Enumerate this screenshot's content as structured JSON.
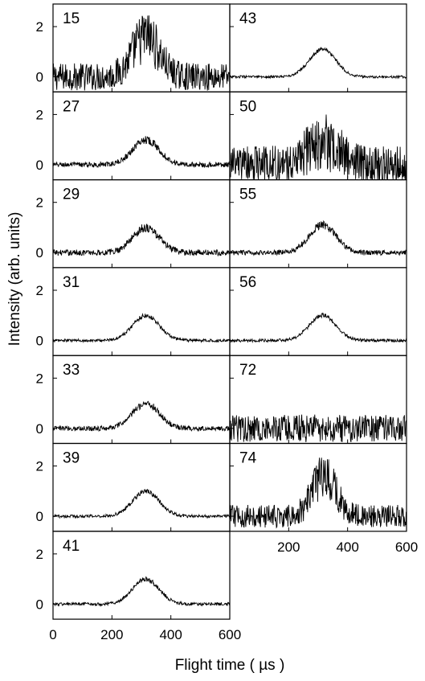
{
  "chart_data": {
    "type": "line",
    "xlabel": "Flight time ( µs )",
    "ylabel": "Intensity (arb. units)",
    "xlim": [
      0,
      600
    ],
    "ylim": [
      -0.6,
      2.9
    ],
    "x_ticks": [
      0,
      200,
      400,
      600
    ],
    "x_tick_labels": [
      "0",
      "200",
      "400",
      "600"
    ],
    "y_ticks": [
      0,
      2
    ],
    "y_tick_labels": [
      "0",
      "2"
    ],
    "grid": false,
    "panels": [
      {
        "label": "15",
        "column": "left",
        "peak_center": 315,
        "peak_height": 1.6,
        "peak_width": 45,
        "noise": 0.55
      },
      {
        "label": "27",
        "column": "left",
        "peak_center": 315,
        "peak_height": 1.0,
        "peak_width": 45,
        "noise": 0.1
      },
      {
        "label": "29",
        "column": "left",
        "peak_center": 315,
        "peak_height": 1.0,
        "peak_width": 45,
        "noise": 0.12
      },
      {
        "label": "31",
        "column": "left",
        "peak_center": 315,
        "peak_height": 1.0,
        "peak_width": 45,
        "noise": 0.06
      },
      {
        "label": "33",
        "column": "left",
        "peak_center": 315,
        "peak_height": 1.0,
        "peak_width": 45,
        "noise": 0.1
      },
      {
        "label": "39",
        "column": "left",
        "peak_center": 315,
        "peak_height": 1.0,
        "peak_width": 45,
        "noise": 0.06
      },
      {
        "label": "41",
        "column": "left",
        "peak_center": 315,
        "peak_height": 1.0,
        "peak_width": 45,
        "noise": 0.06
      },
      {
        "label": "43",
        "column": "right",
        "peak_center": 315,
        "peak_height": 1.1,
        "peak_width": 45,
        "noise": 0.05
      },
      {
        "label": "50",
        "column": "right",
        "peak_center": 315,
        "peak_height": 0.9,
        "peak_width": 55,
        "noise": 0.75
      },
      {
        "label": "55",
        "column": "right",
        "peak_center": 315,
        "peak_height": 1.1,
        "peak_width": 45,
        "noise": 0.1
      },
      {
        "label": "56",
        "column": "right",
        "peak_center": 315,
        "peak_height": 1.0,
        "peak_width": 45,
        "noise": 0.06
      },
      {
        "label": "72",
        "column": "right",
        "peak_center": 315,
        "peak_height": 0.0,
        "peak_width": 45,
        "noise": 0.55
      },
      {
        "label": "74",
        "column": "right",
        "peak_center": 320,
        "peak_height": 1.6,
        "peak_width": 40,
        "noise": 0.45
      }
    ]
  }
}
